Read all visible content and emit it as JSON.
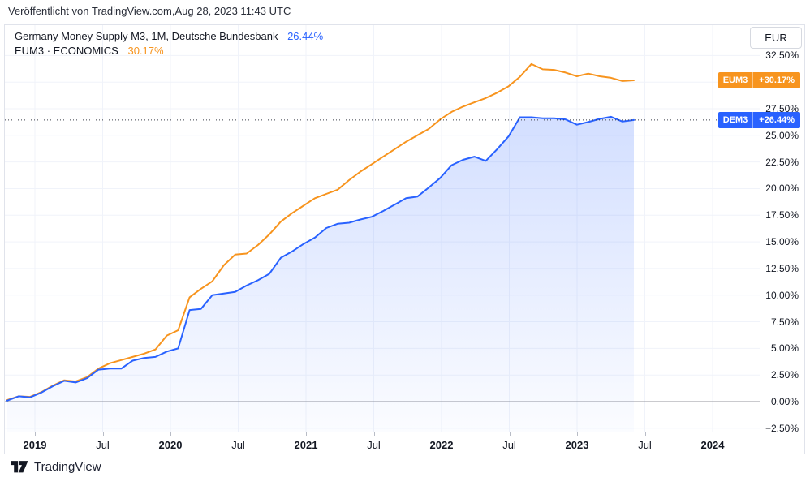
{
  "header": {
    "published": "Veröffentlicht von TradingView.com,Aug 28, 2023 11:43 UTC"
  },
  "legend": {
    "line1_label": "Germany Money Supply M3, 1M, Deutsche Bundesbank",
    "line1_value": "26.44%",
    "line2_label": "EUM3 · ECONOMICS",
    "line2_value": "30.17%"
  },
  "axis": {
    "currency_label": "EUR"
  },
  "badges": [
    {
      "id": "eum3",
      "label": "EUM3",
      "value": "+30.17%",
      "color": "#F7941E",
      "level": 30.17
    },
    {
      "id": "dem3",
      "label": "DEM3",
      "value": "+26.44%",
      "color": "#2962FF",
      "level": 26.44
    }
  ],
  "footer": {
    "brand": "TradingView"
  },
  "colors": {
    "blue": "#2962FF",
    "orange": "#F7941E",
    "grid": "#f0f3fa",
    "zero_line": "#94969c",
    "dotted_line": "#3a3e47",
    "text": "#131722",
    "border": "#e0e3eb"
  },
  "chart_data": {
    "type": "line",
    "title": "Germany Money Supply M3, 1M, Deutsche Bundesbank vs EUM3 · ECONOMICS",
    "unit": "%",
    "grid": true,
    "baseline": 0,
    "dotted_level": 26.44,
    "ylim": [
      -2.8,
      35.4
    ],
    "x_monthly": [
      "2018-11",
      "2018-12",
      "2019-01",
      "2019-02",
      "2019-03",
      "2019-04",
      "2019-05",
      "2019-06",
      "2019-07",
      "2019-08",
      "2019-09",
      "2019-10",
      "2019-11",
      "2019-12",
      "2020-01",
      "2020-02",
      "2020-03",
      "2020-04",
      "2020-05",
      "2020-06",
      "2020-07",
      "2020-08",
      "2020-09",
      "2020-10",
      "2020-11",
      "2020-12",
      "2021-01",
      "2021-02",
      "2021-03",
      "2021-04",
      "2021-05",
      "2021-06",
      "2021-07",
      "2021-08",
      "2021-09",
      "2021-10",
      "2021-11",
      "2021-12",
      "2022-01",
      "2022-02",
      "2022-03",
      "2022-04",
      "2022-05",
      "2022-06",
      "2022-07",
      "2022-08",
      "2022-09",
      "2022-10",
      "2022-11",
      "2022-12",
      "2023-01",
      "2023-02",
      "2023-03",
      "2023-04",
      "2023-05",
      "2023-06"
    ],
    "x_tick_labels": [
      "2019",
      "Jul",
      "2020",
      "Jul",
      "2021",
      "Jul",
      "2022",
      "Jul",
      "2023",
      "Jul",
      "2024"
    ],
    "y_ticks": [
      32.5,
      30,
      27.5,
      25,
      22.5,
      20,
      17.5,
      15,
      12.5,
      10,
      7.5,
      5,
      2.5,
      0,
      -2.5
    ],
    "y_tick_labels": [
      "32.50%",
      "30.00%",
      "27.50%",
      "25.00%",
      "22.50%",
      "20.00%",
      "17.50%",
      "15.00%",
      "12.50%",
      "10.00%",
      "7.50%",
      "5.00%",
      "2.50%",
      "0.00%",
      "−2.50%"
    ],
    "series": [
      {
        "name": "EUM3",
        "label": "EUM3 · ECONOMICS",
        "color": "#F7941E",
        "current": 30.17,
        "area_fill": false,
        "values": [
          0.15,
          0.5,
          0.45,
          0.9,
          1.5,
          2.0,
          1.9,
          2.3,
          3.1,
          3.6,
          3.9,
          4.2,
          4.5,
          4.9,
          6.2,
          6.7,
          9.8,
          10.6,
          11.3,
          12.8,
          13.8,
          13.9,
          14.7,
          15.7,
          16.9,
          17.7,
          18.4,
          19.1,
          19.5,
          19.9,
          20.8,
          21.6,
          22.3,
          23.0,
          23.7,
          24.4,
          25.0,
          25.6,
          26.5,
          27.2,
          27.7,
          28.1,
          28.5,
          29.0,
          29.6,
          30.5,
          31.7,
          31.2,
          31.15,
          30.9,
          30.55,
          30.8,
          30.55,
          30.4,
          30.1,
          30.17
        ]
      },
      {
        "name": "DEM3",
        "label": "Germany Money Supply M3, 1M, Deutsche Bundesbank",
        "color": "#2962FF",
        "current": 26.44,
        "area_fill": true,
        "values": [
          0.1,
          0.5,
          0.4,
          0.85,
          1.45,
          1.95,
          1.8,
          2.2,
          3.0,
          3.1,
          3.1,
          3.85,
          4.1,
          4.2,
          4.7,
          5.0,
          8.6,
          8.7,
          10.0,
          10.15,
          10.3,
          10.9,
          11.4,
          12.0,
          13.5,
          14.1,
          14.8,
          15.4,
          16.3,
          16.7,
          16.8,
          17.1,
          17.35,
          17.9,
          18.5,
          19.1,
          19.25,
          20.1,
          21.0,
          22.2,
          22.7,
          23.0,
          22.6,
          23.7,
          24.9,
          26.7,
          26.7,
          26.6,
          26.6,
          26.5,
          26.0,
          26.25,
          26.55,
          26.75,
          26.3,
          26.44
        ]
      }
    ]
  }
}
